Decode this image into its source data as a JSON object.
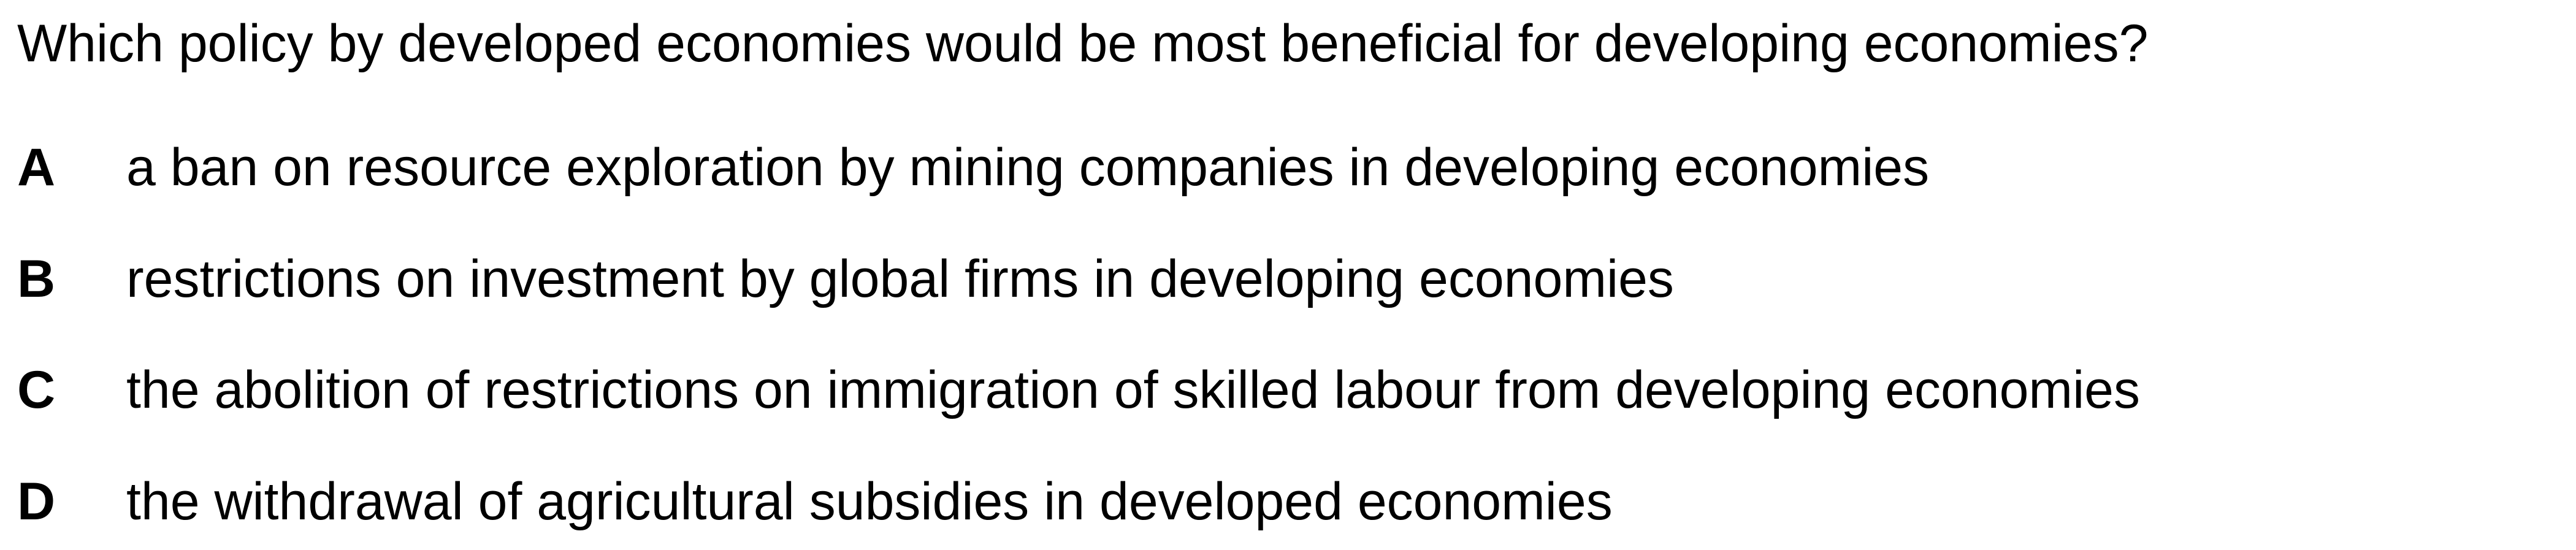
{
  "question": {
    "text": "Which policy by developed economies would be most beneficial for developing economies?"
  },
  "options": [
    {
      "letter": "A",
      "text": "a ban on resource exploration by mining companies in developing economies"
    },
    {
      "letter": "B",
      "text": "restrictions on investment by global firms in developing economies"
    },
    {
      "letter": "C",
      "text": "the abolition of restrictions on immigration of skilled labour from developing economies"
    },
    {
      "letter": "D",
      "text": "the withdrawal of agricultural subsidies in developed economies"
    }
  ]
}
